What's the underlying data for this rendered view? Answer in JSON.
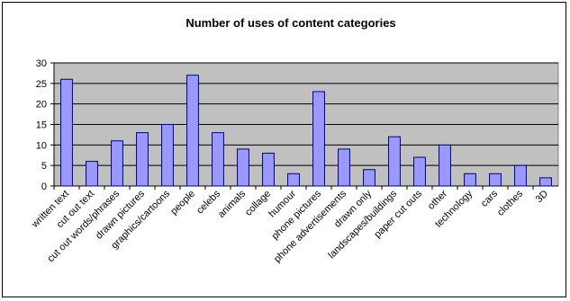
{
  "chart_data": {
    "type": "bar",
    "title": "Number of uses of content categories",
    "xlabel": "",
    "ylabel": "",
    "ylim": [
      0,
      30
    ],
    "yticks": [
      0,
      5,
      10,
      15,
      20,
      25,
      30
    ],
    "grid": true,
    "legend": "none",
    "categories": [
      "written text",
      "cut out text",
      "cut out words/phrases",
      "drawn pictures",
      "graphics/cartoons",
      "people",
      "celebs",
      "animals",
      "collage",
      "humour",
      "phone pictures",
      "phone advertisements",
      "drawn only",
      "landscapes/buildings",
      "paper cut outs",
      "other",
      "technology",
      "cars",
      "clothes",
      "3D"
    ],
    "values": [
      26,
      6,
      11,
      13,
      15,
      27,
      13,
      9,
      8,
      3,
      23,
      9,
      4,
      12,
      7,
      10,
      3,
      3,
      5,
      2
    ],
    "colors": {
      "bar_fill": "#9999ff",
      "bar_stroke": "#000080",
      "plot_background": "#c0c0c0",
      "gridline": "#000000"
    }
  }
}
